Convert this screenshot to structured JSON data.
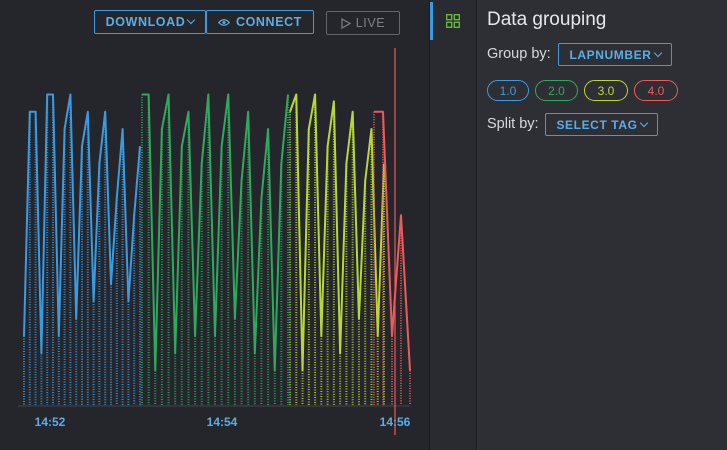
{
  "toolbar": {
    "download_label": "DOWNLOAD",
    "connect_label": "CONNECT",
    "live_label": "LIVE"
  },
  "panel": {
    "title": "Data grouping",
    "group_by_label": "Group by:",
    "group_by_value": "LAPNUMBER",
    "split_by_label": "Split by:",
    "split_by_value": "SELECT TAG"
  },
  "groups": [
    {
      "label": "1.0",
      "color": "#3b9be0"
    },
    {
      "label": "2.0",
      "color": "#2eaa5c"
    },
    {
      "label": "3.0",
      "color": "#b7d936"
    },
    {
      "label": "4.0",
      "color": "#ec5a5a"
    }
  ],
  "icons": {
    "rail": "grid-icon",
    "connect": "eye-icon",
    "live": "play-icon"
  },
  "chart_data": {
    "type": "line",
    "x_ticks": [
      "14:52",
      "14:54",
      "14:56"
    ],
    "grid": false,
    "series": [
      {
        "color": "#3b9be0",
        "values": [
          0.2,
          0.85,
          0.85,
          0.15,
          0.9,
          0.9,
          0.2,
          0.8,
          0.9,
          0.25,
          0.75,
          0.85,
          0.3,
          0.7,
          0.85,
          0.35,
          0.6,
          0.8,
          0.3,
          0.55,
          0.75
        ]
      },
      {
        "color": "#2eaa5c",
        "values": [
          0.9,
          0.9,
          0.1,
          0.8,
          0.9,
          0.15,
          0.75,
          0.85,
          0.2,
          0.7,
          0.9,
          0.2,
          0.75,
          0.9,
          0.25,
          0.65,
          0.85,
          0.15,
          0.6,
          0.8,
          0.1,
          0.7,
          0.9
        ]
      },
      {
        "color": "#b7d936",
        "values": [
          0.85,
          0.9,
          0.1,
          0.8,
          0.9,
          0.2,
          0.75,
          0.88,
          0.15,
          0.7,
          0.85,
          0.25,
          0.65,
          0.8,
          0.2,
          0.7
        ]
      },
      {
        "color": "#ec5a5a",
        "values": [
          0.85,
          0.85,
          0.2,
          0.55,
          0.1
        ]
      }
    ]
  }
}
